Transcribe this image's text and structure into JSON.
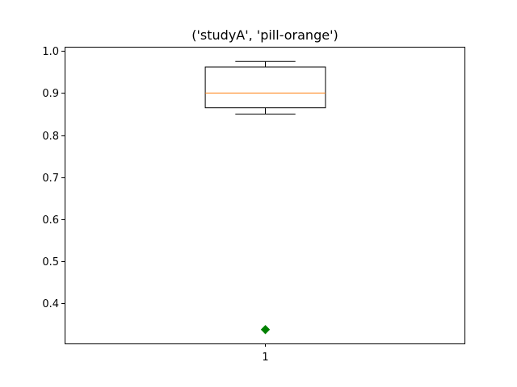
{
  "chart_data": {
    "type": "box",
    "title": "('studyA', 'pill-orange')",
    "xlabel": "",
    "ylabel": "",
    "categories": [
      "1"
    ],
    "ylim": [
      0.305,
      1.01
    ],
    "yticks": [
      0.4,
      0.5,
      0.6,
      0.7,
      0.8,
      0.9,
      1.0
    ],
    "ytick_labels": [
      "0.4",
      "0.5",
      "0.6",
      "0.7",
      "0.8",
      "0.9",
      "1.0"
    ],
    "boxes": [
      {
        "category": "1",
        "whisker_low": 0.85,
        "q1": 0.865,
        "median": 0.9,
        "q3": 0.962,
        "whisker_high": 0.975,
        "outliers": [
          0.338
        ]
      }
    ],
    "grid": false,
    "colors": {
      "box": "#000000",
      "median": "#ff7f0e",
      "outlier": "#008000"
    }
  }
}
